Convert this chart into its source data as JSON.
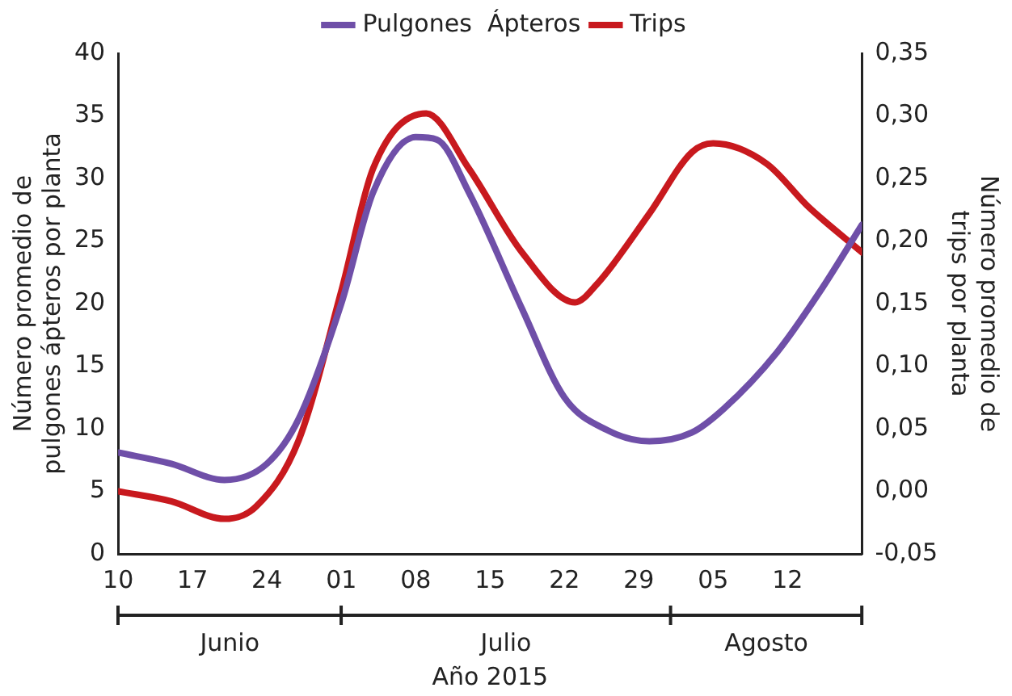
{
  "chart_data": {
    "type": "line",
    "xlabel": "Año 2015",
    "ylabel": "Número promedio de pulgones ápteros por planta",
    "y2label": "Número promedio de trips por planta",
    "xlim": [
      "2015-06-10",
      "2015-08-19"
    ],
    "xticks": [
      {
        "value": "2015-06-10",
        "label": "10"
      },
      {
        "value": "2015-06-17",
        "label": "17"
      },
      {
        "value": "2015-06-24",
        "label": "24"
      },
      {
        "value": "2015-07-01",
        "label": "01"
      },
      {
        "value": "2015-07-08",
        "label": "08"
      },
      {
        "value": "2015-07-15",
        "label": "15"
      },
      {
        "value": "2015-07-22",
        "label": "22"
      },
      {
        "value": "2015-07-29",
        "label": "29"
      },
      {
        "value": "2015-08-05",
        "label": "05"
      },
      {
        "value": "2015-08-12",
        "label": "12"
      }
    ],
    "ylim": [
      0,
      40
    ],
    "yticks": [
      0,
      5,
      10,
      15,
      20,
      25,
      30,
      35,
      40
    ],
    "y2lim": [
      -0.05,
      0.35
    ],
    "y2ticks": [
      {
        "value": -0.05,
        "label": "-0,05"
      },
      {
        "value": 0,
        "label": "0,00"
      },
      {
        "value": 0.05,
        "label": "0,05"
      },
      {
        "value": 0.1,
        "label": "0,10"
      },
      {
        "value": 0.15,
        "label": "0,15"
      },
      {
        "value": 0.2,
        "label": "0,20"
      },
      {
        "value": 0.25,
        "label": "0,25"
      },
      {
        "value": 0.3,
        "label": "0,30"
      },
      {
        "value": 0.35,
        "label": "0,35"
      }
    ],
    "annotations": [
      "Junio",
      "Julio",
      "Agosto"
    ],
    "legend": "top",
    "grid": false,
    "marker": "none",
    "line_style": "solid",
    "series": [
      {
        "name": "Pulgones  Ápteros",
        "color": "#6f4fa8",
        "x": [
          "2015-06-10",
          "2015-06-15",
          "2015-06-20",
          "2015-06-24",
          "2015-06-27",
          "2015-07-01",
          "2015-07-04",
          "2015-07-08",
          "2015-07-10",
          "2015-07-13",
          "2015-07-18",
          "2015-07-22",
          "2015-07-26",
          "2015-07-30",
          "2015-08-03",
          "2015-08-06",
          "2015-08-11",
          "2015-08-15",
          "2015-08-19"
        ],
        "values": [
          8.1,
          7.2,
          5.9,
          7.2,
          10.8,
          20,
          28.9,
          33.3,
          33.1,
          28.9,
          19.6,
          12.5,
          9.9,
          9.0,
          9.7,
          11.6,
          16.1,
          20.9,
          26.3
        ]
      },
      {
        "name": "Trips",
        "color": "#c8191e",
        "axis": "y2",
        "x": [
          "2015-06-10",
          "2015-06-15",
          "2015-06-20",
          "2015-06-23",
          "2015-06-27",
          "2015-07-01",
          "2015-07-04",
          "2015-07-09",
          "2015-07-13",
          "2015-07-18",
          "2015-07-23",
          "2015-07-25",
          "2015-07-30",
          "2015-08-03",
          "2015-08-05",
          "2015-08-10",
          "2015-08-14",
          "2015-08-19"
        ],
        "values": [
          0.0,
          -0.008,
          -0.022,
          -0.012,
          0.041,
          0.16,
          0.258,
          0.302,
          0.258,
          0.191,
          0.151,
          0.165,
          0.222,
          0.271,
          0.278,
          0.262,
          0.227,
          0.191
        ]
      }
    ]
  }
}
